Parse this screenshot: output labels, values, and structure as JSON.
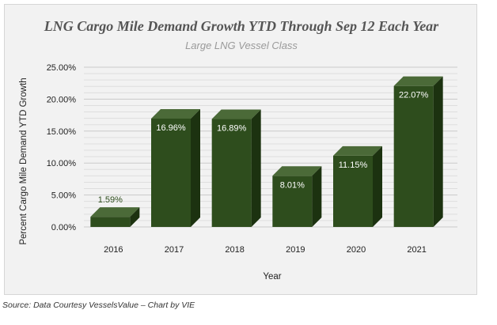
{
  "chart_data": {
    "type": "bar",
    "title": "LNG Cargo Mile Demand Growth YTD Through Sep 12 Each Year",
    "subtitle": "Large LNG Vessel Class",
    "xlabel": "Year",
    "ylabel": "Percent Cargo Mile Demand YTD Growth",
    "categories": [
      "2016",
      "2017",
      "2018",
      "2019",
      "2020",
      "2021"
    ],
    "values": [
      1.59,
      16.96,
      16.89,
      8.01,
      11.15,
      22.07
    ],
    "value_labels": [
      "1.59%",
      "16.96%",
      "16.89%",
      "8.01%",
      "11.15%",
      "22.07%"
    ],
    "ylim": [
      0,
      25
    ],
    "yticks": [
      0,
      5,
      10,
      15,
      20,
      25
    ],
    "ytick_labels": [
      "0.00%",
      "5.00%",
      "10.00%",
      "15.00%",
      "20.00%",
      "25.00%"
    ],
    "grid": true,
    "legend": "none",
    "bar_style": "3d"
  },
  "source_note": "Source: Data Courtesy VesselsValue – Chart by VIE",
  "colors": {
    "bar_front": "#2e4d1d",
    "bar_top": "#4b6a38",
    "bar_side": "#1c3210",
    "gridline": "#c9c9c9",
    "label_light": "#ffffff",
    "label_dark": "#2e4d1d"
  }
}
